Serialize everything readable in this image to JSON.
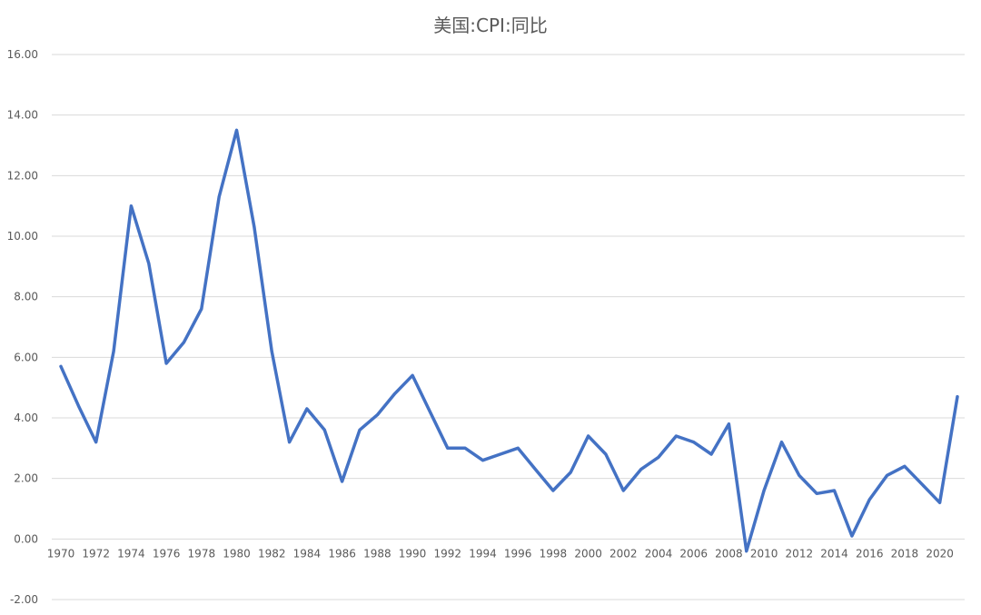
{
  "chart_data": {
    "type": "line",
    "title": "美国:CPI:同比",
    "xlabel": "",
    "ylabel": "",
    "ylim": [
      -2,
      16
    ],
    "y_ticks": [
      "16.00",
      "14.00",
      "12.00",
      "10.00",
      "8.00",
      "6.00",
      "4.00",
      "2.00",
      "0.00",
      "-2.00"
    ],
    "x_tick_labels": [
      "1970",
      "1972",
      "1974",
      "1976",
      "1978",
      "1980",
      "1982",
      "1984",
      "1986",
      "1988",
      "1990",
      "1992",
      "1994",
      "1996",
      "1998",
      "2000",
      "2002",
      "2004",
      "2006",
      "2008",
      "2010",
      "2012",
      "2014",
      "2016",
      "2018",
      "2020"
    ],
    "grid": true,
    "line_color": "#4472C4",
    "x": [
      1970,
      1971,
      1972,
      1973,
      1974,
      1975,
      1976,
      1977,
      1978,
      1979,
      1980,
      1981,
      1982,
      1983,
      1984,
      1985,
      1986,
      1987,
      1988,
      1989,
      1990,
      1991,
      1992,
      1993,
      1994,
      1995,
      1996,
      1997,
      1998,
      1999,
      2000,
      2001,
      2002,
      2003,
      2004,
      2005,
      2006,
      2007,
      2008,
      2009,
      2010,
      2011,
      2012,
      2013,
      2014,
      2015,
      2016,
      2017,
      2018,
      2019,
      2020,
      2021
    ],
    "series": [
      {
        "values": [
          5.7,
          4.4,
          3.2,
          6.2,
          11.0,
          9.1,
          5.8,
          6.5,
          7.6,
          11.3,
          13.5,
          10.3,
          6.2,
          3.2,
          4.3,
          3.6,
          1.9,
          3.6,
          4.1,
          4.8,
          5.4,
          4.2,
          3.0,
          3.0,
          2.6,
          2.8,
          3.0,
          2.3,
          1.6,
          2.2,
          3.4,
          2.8,
          1.6,
          2.3,
          2.7,
          3.4,
          3.2,
          2.8,
          3.8,
          -0.4,
          1.6,
          3.2,
          2.1,
          1.5,
          1.6,
          0.1,
          1.3,
          2.1,
          2.4,
          1.8,
          1.2,
          4.7
        ]
      }
    ]
  }
}
